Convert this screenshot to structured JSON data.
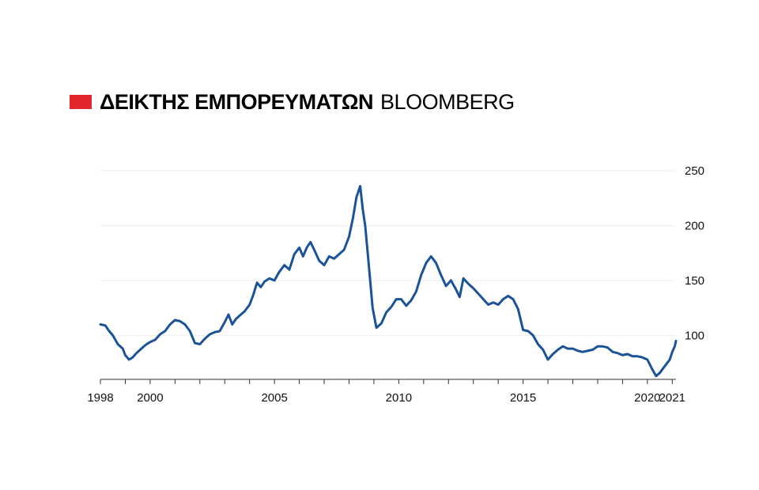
{
  "title": {
    "mark_color": "#e3262d",
    "bold": "ΔΕΙΚΤΗΣ ΕΜΠΟΡΕΥΜΑΤΩΝ",
    "light": "BLOOMBERG"
  },
  "chart_data": {
    "type": "line",
    "title": "ΔΕΙΚΤΗΣ ΕΜΠΟΡΕΥΜΑΤΩΝ BLOOMBERG",
    "xlabel": "",
    "ylabel": "",
    "xlim": [
      1998.0,
      2021.15
    ],
    "ylim": [
      60,
      250
    ],
    "y_axis_position": "right",
    "grid": "horizontal",
    "line_color": "#1b5398",
    "y_ticks": [
      100,
      150,
      200,
      250
    ],
    "x_tick_labels": [
      "1998",
      "2000",
      "2005",
      "2010",
      "2015",
      "2020",
      "2021"
    ],
    "x_tick_values": [
      1998,
      2000,
      2005,
      2010,
      2015,
      2020,
      2021
    ],
    "series": [
      {
        "values": [
          [
            1998.0,
            110
          ],
          [
            1998.2,
            109
          ],
          [
            1998.35,
            104
          ],
          [
            1998.5,
            100
          ],
          [
            1998.7,
            92
          ],
          [
            1998.9,
            88
          ],
          [
            1999.0,
            82
          ],
          [
            1999.15,
            78
          ],
          [
            1999.3,
            80
          ],
          [
            1999.45,
            84
          ],
          [
            1999.6,
            87
          ],
          [
            1999.8,
            91
          ],
          [
            2000.0,
            94
          ],
          [
            2000.2,
            96
          ],
          [
            2000.4,
            101
          ],
          [
            2000.6,
            104
          ],
          [
            2000.8,
            110
          ],
          [
            2001.0,
            114
          ],
          [
            2001.2,
            113
          ],
          [
            2001.4,
            110
          ],
          [
            2001.6,
            104
          ],
          [
            2001.8,
            93
          ],
          [
            2002.0,
            92
          ],
          [
            2002.2,
            97
          ],
          [
            2002.4,
            101
          ],
          [
            2002.6,
            103
          ],
          [
            2002.8,
            104
          ],
          [
            2003.0,
            112
          ],
          [
            2003.15,
            119
          ],
          [
            2003.3,
            110
          ],
          [
            2003.45,
            115
          ],
          [
            2003.6,
            118
          ],
          [
            2003.8,
            122
          ],
          [
            2004.0,
            128
          ],
          [
            2004.15,
            137
          ],
          [
            2004.3,
            148
          ],
          [
            2004.45,
            144
          ],
          [
            2004.6,
            149
          ],
          [
            2004.8,
            152
          ],
          [
            2005.0,
            150
          ],
          [
            2005.2,
            158
          ],
          [
            2005.4,
            164
          ],
          [
            2005.6,
            160
          ],
          [
            2005.8,
            174
          ],
          [
            2006.0,
            180
          ],
          [
            2006.15,
            172
          ],
          [
            2006.3,
            180
          ],
          [
            2006.45,
            185
          ],
          [
            2006.6,
            178
          ],
          [
            2006.8,
            168
          ],
          [
            2007.0,
            164
          ],
          [
            2007.2,
            172
          ],
          [
            2007.4,
            170
          ],
          [
            2007.6,
            174
          ],
          [
            2007.8,
            178
          ],
          [
            2008.0,
            190
          ],
          [
            2008.15,
            206
          ],
          [
            2008.3,
            226
          ],
          [
            2008.45,
            236
          ],
          [
            2008.55,
            215
          ],
          [
            2008.65,
            200
          ],
          [
            2008.75,
            175
          ],
          [
            2008.85,
            150
          ],
          [
            2008.95,
            125
          ],
          [
            2009.1,
            107
          ],
          [
            2009.3,
            111
          ],
          [
            2009.5,
            121
          ],
          [
            2009.7,
            126
          ],
          [
            2009.9,
            133
          ],
          [
            2010.1,
            133
          ],
          [
            2010.3,
            127
          ],
          [
            2010.5,
            132
          ],
          [
            2010.7,
            140
          ],
          [
            2010.9,
            155
          ],
          [
            2011.1,
            166
          ],
          [
            2011.3,
            172
          ],
          [
            2011.5,
            166
          ],
          [
            2011.7,
            155
          ],
          [
            2011.9,
            145
          ],
          [
            2012.1,
            150
          ],
          [
            2012.3,
            142
          ],
          [
            2012.45,
            135
          ],
          [
            2012.6,
            152
          ],
          [
            2012.8,
            147
          ],
          [
            2013.0,
            143
          ],
          [
            2013.2,
            138
          ],
          [
            2013.4,
            133
          ],
          [
            2013.6,
            128
          ],
          [
            2013.8,
            130
          ],
          [
            2014.0,
            128
          ],
          [
            2014.2,
            133
          ],
          [
            2014.4,
            136
          ],
          [
            2014.6,
            133
          ],
          [
            2014.8,
            124
          ],
          [
            2015.0,
            105
          ],
          [
            2015.2,
            104
          ],
          [
            2015.4,
            100
          ],
          [
            2015.6,
            92
          ],
          [
            2015.8,
            87
          ],
          [
            2016.0,
            78
          ],
          [
            2016.2,
            83
          ],
          [
            2016.4,
            87
          ],
          [
            2016.6,
            90
          ],
          [
            2016.8,
            88
          ],
          [
            2017.0,
            88
          ],
          [
            2017.2,
            86
          ],
          [
            2017.4,
            85
          ],
          [
            2017.6,
            86
          ],
          [
            2017.8,
            87
          ],
          [
            2018.0,
            90
          ],
          [
            2018.2,
            90
          ],
          [
            2018.4,
            89
          ],
          [
            2018.6,
            85
          ],
          [
            2018.8,
            84
          ],
          [
            2019.0,
            82
          ],
          [
            2019.2,
            83
          ],
          [
            2019.4,
            81
          ],
          [
            2019.6,
            81
          ],
          [
            2019.8,
            80
          ],
          [
            2020.0,
            78
          ],
          [
            2020.2,
            69
          ],
          [
            2020.35,
            63
          ],
          [
            2020.5,
            66
          ],
          [
            2020.7,
            72
          ],
          [
            2020.9,
            78
          ],
          [
            2021.0,
            85
          ],
          [
            2021.1,
            90
          ],
          [
            2021.15,
            95
          ]
        ]
      }
    ]
  }
}
